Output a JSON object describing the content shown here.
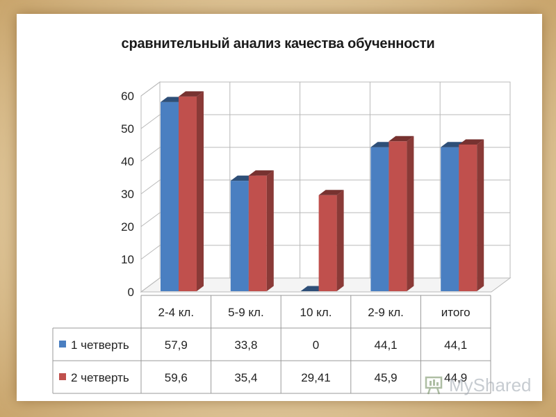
{
  "chart_data": {
    "type": "bar",
    "title": "сравнительный анализ качества обученности",
    "categories": [
      "2-4 кл.",
      "5-9 кл.",
      "10 кл.",
      "2-9 кл.",
      "итого"
    ],
    "series": [
      {
        "name": "1 четверть",
        "values": [
          57.9,
          33.8,
          0,
          44.1,
          44.1
        ],
        "labels": [
          "57,9",
          "33,8",
          "0",
          "44,1",
          "44,1"
        ],
        "color": "#4a7fc1"
      },
      {
        "name": "2 четверть",
        "values": [
          59.6,
          35.4,
          29.41,
          45.9,
          44.9
        ],
        "labels": [
          "59,6",
          "35,4",
          "29,41",
          "45,9",
          "44,9"
        ],
        "color": "#c0504d"
      }
    ],
    "ylim": [
      0,
      60
    ],
    "yticks": [
      "0",
      "10",
      "20",
      "30",
      "40",
      "50",
      "60"
    ],
    "grid": true,
    "style": "3d-clustered-with-data-table",
    "legend": "data-table-left"
  },
  "watermark": {
    "text": "MyShared",
    "icon": "presentation-board-icon"
  }
}
